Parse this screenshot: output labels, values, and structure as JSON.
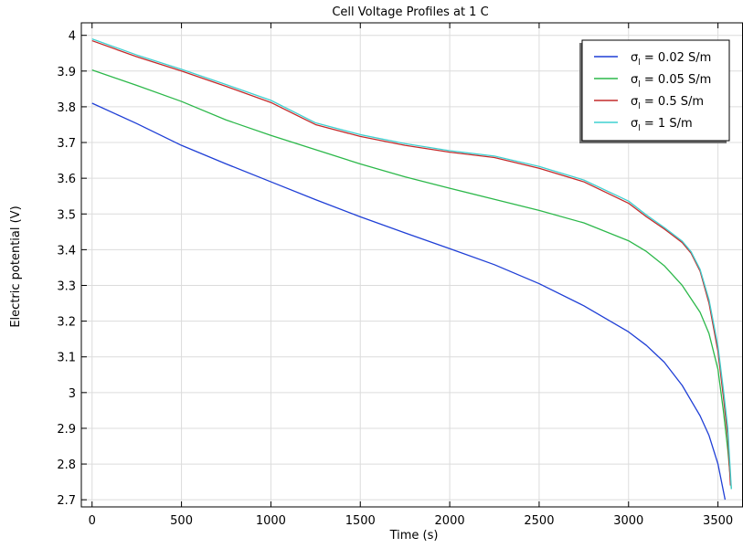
{
  "chart_data": {
    "type": "line",
    "title": "Cell Voltage Profiles at 1 C",
    "xlabel": "Time (s)",
    "ylabel": "Electric potential (V)",
    "xlim": [
      -60,
      3640
    ],
    "ylim": [
      2.68,
      4.035
    ],
    "xticks": [
      0,
      500,
      1000,
      1500,
      2000,
      2500,
      3000,
      3500
    ],
    "yticks": [
      2.7,
      2.8,
      2.9,
      3,
      3.1,
      3.2,
      3.3,
      3.4,
      3.5,
      3.6,
      3.7,
      3.8,
      3.9,
      4
    ],
    "xtick_labels": [
      "0",
      "500",
      "1000",
      "1500",
      "2000",
      "2500",
      "3000",
      "3500"
    ],
    "ytick_labels": [
      "2.7",
      "2.8",
      "2.9",
      "3",
      "3.1",
      "3.2",
      "3.3",
      "3.4",
      "3.5",
      "3.6",
      "3.7",
      "3.8",
      "3.9",
      "4"
    ],
    "grid": true,
    "legend_position": "top-right",
    "series": [
      {
        "name": "σl = 0.02 S/m",
        "legend_symbol": "σ",
        "legend_sub": "l",
        "legend_rest": " = 0.02 S/m",
        "color": "#1f3fd6",
        "points": [
          [
            0,
            3.81
          ],
          [
            250,
            3.753
          ],
          [
            500,
            3.692
          ],
          [
            750,
            3.64
          ],
          [
            1000,
            3.59
          ],
          [
            1250,
            3.54
          ],
          [
            1500,
            3.492
          ],
          [
            1750,
            3.447
          ],
          [
            2000,
            3.403
          ],
          [
            2250,
            3.358
          ],
          [
            2500,
            3.305
          ],
          [
            2750,
            3.243
          ],
          [
            3000,
            3.17
          ],
          [
            3100,
            3.132
          ],
          [
            3200,
            3.085
          ],
          [
            3300,
            3.02
          ],
          [
            3400,
            2.935
          ],
          [
            3450,
            2.88
          ],
          [
            3500,
            2.8
          ],
          [
            3540,
            2.7
          ]
        ]
      },
      {
        "name": "σl = 0.05 S/m",
        "legend_symbol": "σ",
        "legend_sub": "l",
        "legend_rest": " = 0.05 S/m",
        "color": "#2cb84a",
        "points": [
          [
            0,
            3.903
          ],
          [
            250,
            3.86
          ],
          [
            500,
            3.815
          ],
          [
            750,
            3.763
          ],
          [
            1000,
            3.72
          ],
          [
            1250,
            3.68
          ],
          [
            1500,
            3.64
          ],
          [
            1750,
            3.604
          ],
          [
            2000,
            3.572
          ],
          [
            2250,
            3.541
          ],
          [
            2500,
            3.51
          ],
          [
            2750,
            3.475
          ],
          [
            3000,
            3.425
          ],
          [
            3100,
            3.395
          ],
          [
            3200,
            3.355
          ],
          [
            3300,
            3.3
          ],
          [
            3400,
            3.225
          ],
          [
            3450,
            3.165
          ],
          [
            3500,
            3.065
          ],
          [
            3530,
            2.95
          ],
          [
            3555,
            2.84
          ],
          [
            3575,
            2.73
          ]
        ]
      },
      {
        "name": "σl = 0.5 S/m",
        "legend_symbol": "σ",
        "legend_sub": "l",
        "legend_rest": " = 0.5 S/m",
        "color": "#c42a2a",
        "points": [
          [
            0,
            3.985
          ],
          [
            250,
            3.94
          ],
          [
            500,
            3.9
          ],
          [
            750,
            3.857
          ],
          [
            1000,
            3.812
          ],
          [
            1250,
            3.75
          ],
          [
            1500,
            3.717
          ],
          [
            1750,
            3.692
          ],
          [
            2000,
            3.673
          ],
          [
            2250,
            3.658
          ],
          [
            2500,
            3.628
          ],
          [
            2750,
            3.59
          ],
          [
            3000,
            3.53
          ],
          [
            3100,
            3.492
          ],
          [
            3200,
            3.458
          ],
          [
            3300,
            3.42
          ],
          [
            3350,
            3.39
          ],
          [
            3400,
            3.34
          ],
          [
            3450,
            3.25
          ],
          [
            3500,
            3.115
          ],
          [
            3530,
            2.99
          ],
          [
            3555,
            2.875
          ],
          [
            3570,
            2.74
          ]
        ]
      },
      {
        "name": "σl = 1 S/m",
        "legend_symbol": "σ",
        "legend_sub": "l",
        "legend_rest": " = 1 S/m",
        "color": "#3fd0d0",
        "points": [
          [
            0,
            3.99
          ],
          [
            250,
            3.945
          ],
          [
            500,
            3.905
          ],
          [
            750,
            3.862
          ],
          [
            1000,
            3.818
          ],
          [
            1250,
            3.755
          ],
          [
            1500,
            3.722
          ],
          [
            1750,
            3.697
          ],
          [
            2000,
            3.677
          ],
          [
            2250,
            3.662
          ],
          [
            2500,
            3.633
          ],
          [
            2750,
            3.595
          ],
          [
            3000,
            3.536
          ],
          [
            3100,
            3.497
          ],
          [
            3200,
            3.462
          ],
          [
            3300,
            3.424
          ],
          [
            3350,
            3.394
          ],
          [
            3400,
            3.345
          ],
          [
            3450,
            3.26
          ],
          [
            3500,
            3.13
          ],
          [
            3530,
            3.01
          ],
          [
            3555,
            2.9
          ],
          [
            3575,
            2.73
          ]
        ]
      }
    ]
  }
}
